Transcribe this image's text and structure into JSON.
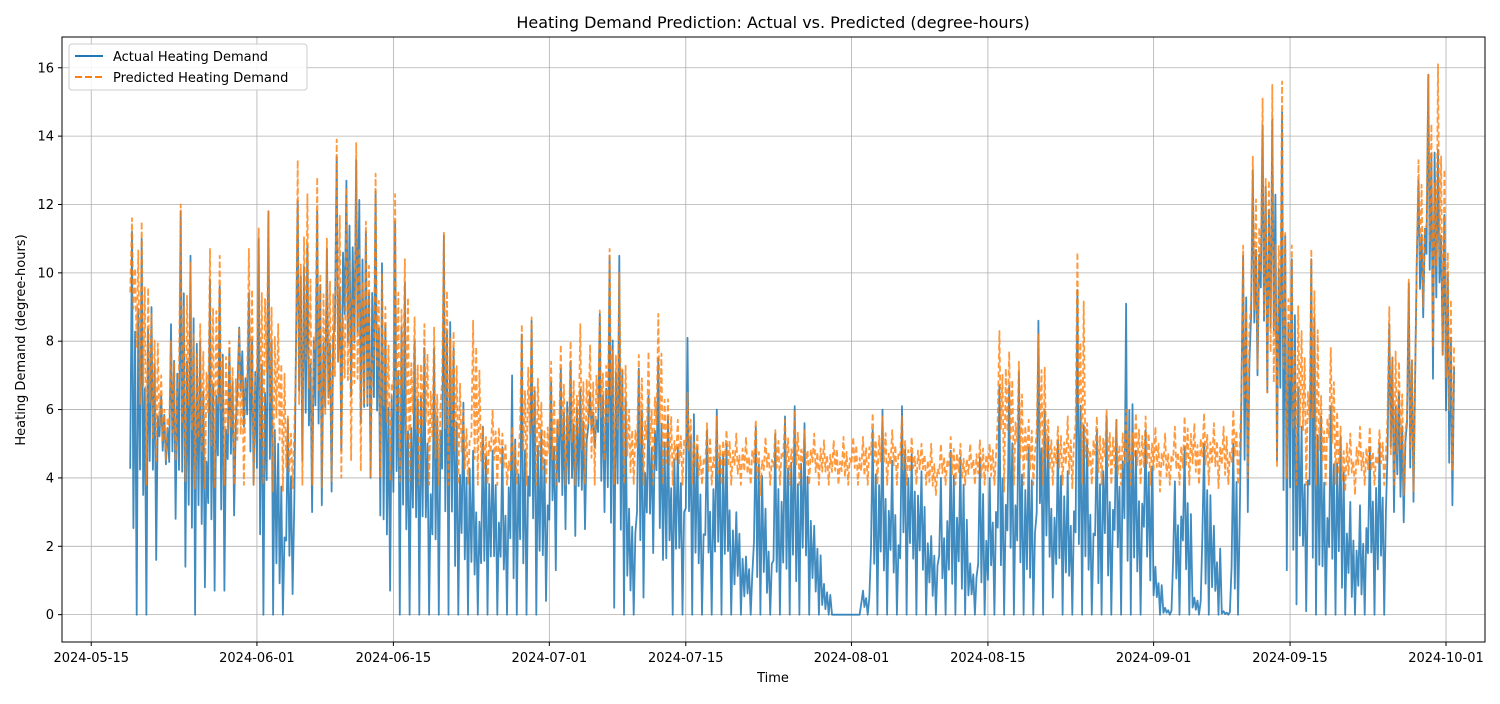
{
  "chart_data": {
    "type": "line",
    "title": "Heating Demand Prediction: Actual vs. Predicted (degree-hours)",
    "xlabel": "Time",
    "ylabel": "Heating Demand (degree-hours)",
    "x_range": [
      "2024-05-12",
      "2024-10-05"
    ],
    "ylim": [
      -0.8,
      16.9
    ],
    "y_ticks": [
      0,
      2,
      4,
      6,
      8,
      10,
      12,
      14,
      16
    ],
    "x_ticks": [
      "2024-05-15",
      "2024-06-01",
      "2024-06-15",
      "2024-07-01",
      "2024-07-15",
      "2024-08-01",
      "2024-08-15",
      "2024-09-01",
      "2024-09-15",
      "2024-10-01"
    ],
    "grid": true,
    "legend": "upper left",
    "series": [
      {
        "name": "Actual Heating Demand",
        "color": "#1f77b4",
        "style": "solid",
        "x": [
          "2024-05-19",
          "2024-05-20",
          "2024-05-21",
          "2024-05-22",
          "2024-05-23",
          "2024-05-24",
          "2024-05-25",
          "2024-05-26",
          "2024-05-27",
          "2024-05-28",
          "2024-05-29",
          "2024-05-30",
          "2024-05-31",
          "2024-06-01",
          "2024-06-02",
          "2024-06-03",
          "2024-06-04",
          "2024-06-05",
          "2024-06-06",
          "2024-06-07",
          "2024-06-08",
          "2024-06-09",
          "2024-06-10",
          "2024-06-11",
          "2024-06-12",
          "2024-06-13",
          "2024-06-14",
          "2024-06-15",
          "2024-06-16",
          "2024-06-17",
          "2024-06-18",
          "2024-06-19",
          "2024-06-20",
          "2024-06-21",
          "2024-06-22",
          "2024-06-23",
          "2024-06-24",
          "2024-06-25",
          "2024-06-26",
          "2024-06-27",
          "2024-06-28",
          "2024-06-29",
          "2024-06-30",
          "2024-07-01",
          "2024-07-02",
          "2024-07-03",
          "2024-07-04",
          "2024-07-05",
          "2024-07-06",
          "2024-07-07",
          "2024-07-08",
          "2024-07-09",
          "2024-07-10",
          "2024-07-11",
          "2024-07-12",
          "2024-07-13",
          "2024-07-14",
          "2024-07-15",
          "2024-07-16",
          "2024-07-17",
          "2024-07-18",
          "2024-07-19",
          "2024-07-20",
          "2024-07-21",
          "2024-07-22",
          "2024-07-23",
          "2024-07-24",
          "2024-07-25",
          "2024-07-26",
          "2024-07-27",
          "2024-07-28",
          "2024-07-29",
          "2024-07-30",
          "2024-07-31",
          "2024-08-01",
          "2024-08-02",
          "2024-08-03",
          "2024-08-04",
          "2024-08-05",
          "2024-08-06",
          "2024-08-07",
          "2024-08-08",
          "2024-08-09",
          "2024-08-10",
          "2024-08-11",
          "2024-08-12",
          "2024-08-13",
          "2024-08-14",
          "2024-08-15",
          "2024-08-16",
          "2024-08-17",
          "2024-08-18",
          "2024-08-19",
          "2024-08-20",
          "2024-08-21",
          "2024-08-22",
          "2024-08-23",
          "2024-08-24",
          "2024-08-25",
          "2024-08-26",
          "2024-08-27",
          "2024-08-28",
          "2024-08-29",
          "2024-08-30",
          "2024-08-31",
          "2024-09-01",
          "2024-09-02",
          "2024-09-03",
          "2024-09-04",
          "2024-09-05",
          "2024-09-06",
          "2024-09-07",
          "2024-09-08",
          "2024-09-09",
          "2024-09-10",
          "2024-09-11",
          "2024-09-12",
          "2024-09-13",
          "2024-09-14",
          "2024-09-15",
          "2024-09-16",
          "2024-09-17",
          "2024-09-18",
          "2024-09-19",
          "2024-09-20",
          "2024-09-21",
          "2024-09-22",
          "2024-09-23",
          "2024-09-24",
          "2024-09-25",
          "2024-09-26",
          "2024-09-27",
          "2024-09-28",
          "2024-09-29",
          "2024-09-30",
          "2024-10-01"
        ],
        "daily_max": [
          11.2,
          11.0,
          9.0,
          6.4,
          8.5,
          11.8,
          10.5,
          8.0,
          9.8,
          9.6,
          7.8,
          8.4,
          9.4,
          11.0,
          11.8,
          5.0,
          5.7,
          12.1,
          10.8,
          11.8,
          10.7,
          13.4,
          12.7,
          13.3,
          11.2,
          12.4,
          8.5,
          11.5,
          9.7,
          8.0,
          7.8,
          7.8,
          11.1,
          7.8,
          6.2,
          4.8,
          5.5,
          4.8,
          4.9,
          7.0,
          8.2,
          8.6,
          5.4,
          6.8,
          7.2,
          7.4,
          6.6,
          6.5,
          8.8,
          10.5,
          10.5,
          3.1,
          7.2,
          6.4,
          7.5,
          5.8,
          4.9,
          8.1,
          4.9,
          5.4,
          6.0,
          5.0,
          3.0,
          1.7,
          5.5,
          3.1,
          5.3,
          5.8,
          6.1,
          5.6,
          2.6,
          0.9,
          0.0,
          0.0,
          0.0,
          0.7,
          5.4,
          6.0,
          4.5,
          6.1,
          4.7,
          4.2,
          2.3,
          4.0,
          4.8,
          4.6,
          1.5,
          4.6,
          4.0,
          6.7,
          6.7,
          7.1,
          4.9,
          8.6,
          5.2,
          5.1,
          4.2,
          9.5,
          5.1,
          5.4,
          5.8,
          5.7,
          9.1,
          4.8,
          5.4,
          1.4,
          0.2,
          3.9,
          4.9,
          0.5,
          5.0,
          2.6,
          0.1,
          5.0,
          10.5,
          13.0,
          14.3,
          14.5,
          14.7,
          10.4,
          5.5,
          10.4,
          5.8,
          6.1,
          5.2,
          3.3,
          3.2,
          4.9,
          5.0,
          8.5,
          6.5,
          9.7,
          12.7,
          15.8,
          13.6,
          10.0,
          10.0
        ],
        "daily_min": [
          0.0,
          0.0,
          1.6,
          4.4,
          2.8,
          1.4,
          0.0,
          0.8,
          0.7,
          0.7,
          2.9,
          5.5,
          3.8,
          0.0,
          0.0,
          0.0,
          0.6,
          4.5,
          3.0,
          3.2,
          3.6,
          4.8,
          6.4,
          5.6,
          4.0,
          2.9,
          0.7,
          0.0,
          0.0,
          0.0,
          0.0,
          0.0,
          0.0,
          0.0,
          0.0,
          0.0,
          0.0,
          0.0,
          0.0,
          0.0,
          0.0,
          0.0,
          0.4,
          1.3,
          2.5,
          2.3,
          2.5,
          4.9,
          3.0,
          0.2,
          0.0,
          0.0,
          0.5,
          1.8,
          1.6,
          0.0,
          0.0,
          0.0,
          0.0,
          0.0,
          0.0,
          0.0,
          0.0,
          0.0,
          0.0,
          0.0,
          0.0,
          0.0,
          0.0,
          0.0,
          0.0,
          0.0,
          0.0,
          0.0,
          0.0,
          0.0,
          0.0,
          0.0,
          0.0,
          0.0,
          0.0,
          0.0,
          0.0,
          0.0,
          0.0,
          0.0,
          0.0,
          0.0,
          0.0,
          0.0,
          0.0,
          0.0,
          0.0,
          0.0,
          0.5,
          0.0,
          0.0,
          0.0,
          0.0,
          0.0,
          0.0,
          0.0,
          0.0,
          0.0,
          1.0,
          0.0,
          0.0,
          0.0,
          0.0,
          0.0,
          0.0,
          0.0,
          0.0,
          0.0,
          3.0,
          7.0,
          6.5,
          4.5,
          1.3,
          0.3,
          0.1,
          0.0,
          0.0,
          0.0,
          0.0,
          0.0,
          0.0,
          0.0,
          0.0,
          3.0,
          2.7,
          3.3,
          8.7,
          6.9,
          7.6,
          3.2,
          9.6
        ]
      },
      {
        "name": "Predicted Heating Demand",
        "color": "#ff7f0e",
        "style": "dashed",
        "x": [
          "2024-05-19",
          "2024-05-20",
          "2024-05-21",
          "2024-05-22",
          "2024-05-23",
          "2024-05-24",
          "2024-05-25",
          "2024-05-26",
          "2024-05-27",
          "2024-05-28",
          "2024-05-29",
          "2024-05-30",
          "2024-05-31",
          "2024-06-01",
          "2024-06-02",
          "2024-06-03",
          "2024-06-04",
          "2024-06-05",
          "2024-06-06",
          "2024-06-07",
          "2024-06-08",
          "2024-06-09",
          "2024-06-10",
          "2024-06-11",
          "2024-06-12",
          "2024-06-13",
          "2024-06-14",
          "2024-06-15",
          "2024-06-16",
          "2024-06-17",
          "2024-06-18",
          "2024-06-19",
          "2024-06-20",
          "2024-06-21",
          "2024-06-22",
          "2024-06-23",
          "2024-06-24",
          "2024-06-25",
          "2024-06-26",
          "2024-06-27",
          "2024-06-28",
          "2024-06-29",
          "2024-06-30",
          "2024-07-01",
          "2024-07-02",
          "2024-07-03",
          "2024-07-04",
          "2024-07-05",
          "2024-07-06",
          "2024-07-07",
          "2024-07-08",
          "2024-07-09",
          "2024-07-10",
          "2024-07-11",
          "2024-07-12",
          "2024-07-13",
          "2024-07-14",
          "2024-07-15",
          "2024-07-16",
          "2024-07-17",
          "2024-07-18",
          "2024-07-19",
          "2024-07-20",
          "2024-07-21",
          "2024-07-22",
          "2024-07-23",
          "2024-07-24",
          "2024-07-25",
          "2024-07-26",
          "2024-07-27",
          "2024-07-28",
          "2024-07-29",
          "2024-07-30",
          "2024-07-31",
          "2024-08-01",
          "2024-08-02",
          "2024-08-03",
          "2024-08-04",
          "2024-08-05",
          "2024-08-06",
          "2024-08-07",
          "2024-08-08",
          "2024-08-09",
          "2024-08-10",
          "2024-08-11",
          "2024-08-12",
          "2024-08-13",
          "2024-08-14",
          "2024-08-15",
          "2024-08-16",
          "2024-08-17",
          "2024-08-18",
          "2024-08-19",
          "2024-08-20",
          "2024-08-21",
          "2024-08-22",
          "2024-08-23",
          "2024-08-24",
          "2024-08-25",
          "2024-08-26",
          "2024-08-27",
          "2024-08-28",
          "2024-08-29",
          "2024-08-30",
          "2024-08-31",
          "2024-09-01",
          "2024-09-02",
          "2024-09-03",
          "2024-09-04",
          "2024-09-05",
          "2024-09-06",
          "2024-09-07",
          "2024-09-08",
          "2024-09-09",
          "2024-09-10",
          "2024-09-11",
          "2024-09-12",
          "2024-09-13",
          "2024-09-14",
          "2024-09-15",
          "2024-09-16",
          "2024-09-17",
          "2024-09-18",
          "2024-09-19",
          "2024-09-20",
          "2024-09-21",
          "2024-09-22",
          "2024-09-23",
          "2024-09-24",
          "2024-09-25",
          "2024-09-26",
          "2024-09-27",
          "2024-09-28",
          "2024-09-29",
          "2024-09-30",
          "2024-10-01"
        ],
        "daily_max": [
          11.6,
          11.5,
          8.8,
          7.0,
          8.0,
          12.0,
          10.3,
          8.5,
          10.7,
          10.5,
          8.0,
          8.4,
          10.7,
          11.3,
          11.8,
          8.5,
          5.8,
          13.3,
          12.3,
          12.8,
          11.0,
          13.9,
          12.5,
          13.8,
          11.5,
          12.9,
          9.0,
          12.3,
          10.4,
          8.7,
          8.5,
          8.4,
          11.2,
          8.3,
          6.0,
          8.6,
          5.5,
          6.0,
          5.3,
          5.5,
          8.5,
          8.7,
          6.2,
          7.4,
          7.9,
          8.0,
          8.5,
          7.9,
          8.9,
          10.7,
          10.0,
          6.0,
          7.6,
          7.7,
          8.8,
          6.3,
          5.7,
          6.5,
          5.3,
          5.6,
          5.8,
          5.4,
          5.3,
          5.2,
          5.7,
          5.2,
          5.4,
          5.7,
          6.0,
          5.4,
          5.3,
          5.1,
          5.1,
          5.2,
          5.2,
          5.2,
          5.9,
          5.8,
          5.4,
          5.8,
          5.2,
          5.0,
          5.0,
          5.0,
          5.2,
          5.0,
          5.0,
          5.1,
          5.0,
          8.3,
          7.7,
          7.4,
          5.7,
          8.2,
          5.7,
          5.5,
          5.8,
          10.6,
          5.6,
          5.8,
          6.0,
          5.7,
          6.0,
          5.9,
          5.8,
          5.5,
          5.3,
          5.5,
          5.8,
          5.6,
          5.9,
          5.6,
          5.5,
          6.0,
          10.8,
          13.4,
          15.1,
          15.5,
          15.6,
          10.8,
          8.3,
          10.7,
          6.4,
          7.8,
          5.5,
          5.3,
          5.5,
          5.5,
          5.4,
          9.0,
          7.4,
          9.8,
          13.3,
          15.8,
          16.1,
          10.6,
          11.0
        ],
        "daily_min": [
          7.8,
          3.8,
          4.5,
          4.5,
          4.5,
          3.9,
          3.7,
          3.7,
          3.7,
          3.8,
          3.8,
          3.8,
          3.8,
          3.8,
          3.6,
          3.6,
          3.7,
          3.8,
          3.8,
          3.7,
          3.9,
          4.0,
          4.5,
          4.2,
          4.0,
          4.0,
          3.9,
          3.9,
          3.9,
          3.8,
          3.8,
          3.8,
          3.8,
          3.8,
          3.8,
          3.8,
          3.8,
          3.8,
          3.8,
          3.8,
          3.8,
          3.8,
          3.8,
          3.8,
          3.8,
          3.8,
          3.8,
          3.8,
          4.5,
          3.8,
          3.8,
          3.8,
          3.8,
          3.8,
          3.8,
          3.8,
          3.8,
          3.8,
          3.8,
          3.8,
          3.8,
          3.8,
          3.8,
          3.8,
          3.5,
          3.8,
          3.8,
          3.8,
          3.8,
          3.8,
          3.8,
          3.8,
          3.8,
          3.8,
          3.8,
          3.8,
          3.8,
          3.8,
          3.8,
          3.8,
          3.8,
          3.8,
          3.5,
          3.8,
          3.8,
          3.8,
          3.8,
          3.8,
          3.8,
          3.6,
          3.8,
          3.8,
          3.8,
          3.8,
          3.8,
          3.8,
          3.7,
          3.8,
          3.8,
          3.8,
          3.8,
          3.8,
          3.8,
          3.8,
          3.8,
          3.6,
          3.8,
          3.8,
          3.8,
          3.8,
          3.8,
          3.7,
          3.8,
          3.8,
          4.0,
          7.2,
          6.5,
          4.3,
          4.0,
          3.8,
          3.8,
          3.8,
          3.8,
          3.8,
          3.6,
          3.5,
          3.8,
          3.8,
          3.8,
          3.8,
          3.5,
          3.6,
          9.0,
          7.8,
          7.6,
          4.2,
          6.0
        ]
      }
    ]
  }
}
